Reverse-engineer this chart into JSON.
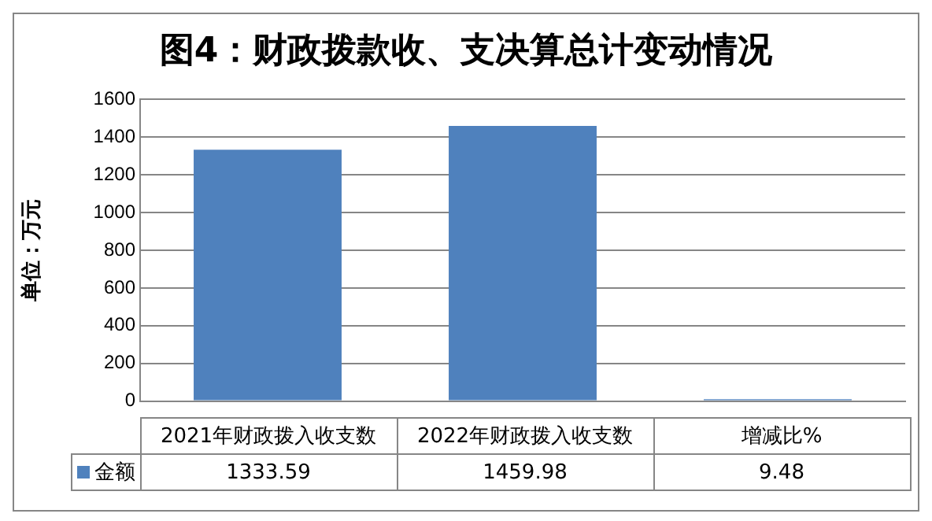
{
  "chart_data": {
    "type": "bar",
    "title": "图4：财政拨款收、支决算总计变动情况",
    "ylabel": "单位：万元",
    "categories": [
      "2021年财政拨入收支数",
      "2022年财政拨入收支数",
      "增减比%"
    ],
    "series": [
      {
        "name": "金额",
        "color": "#4f81bd",
        "values": [
          1333.59,
          1459.98,
          9.48
        ]
      }
    ],
    "ylim": [
      0,
      1600
    ],
    "yticks": [
      0,
      200,
      400,
      600,
      800,
      1000,
      1200,
      1400,
      1600
    ],
    "grid": "y",
    "legend": "bottom",
    "data_labels": true
  }
}
